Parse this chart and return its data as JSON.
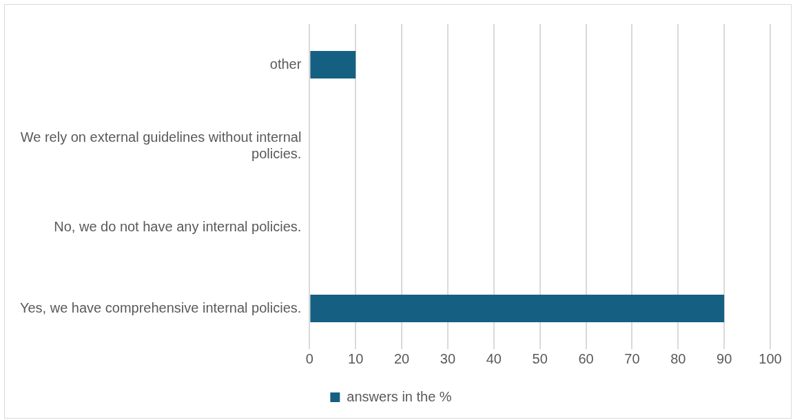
{
  "chart_data": {
    "type": "bar",
    "orientation": "horizontal",
    "categories": [
      "other",
      "We rely on external guidelines without internal policies.",
      "No, we do not have any internal policies.",
      "Yes, we have comprehensive internal policies."
    ],
    "series": [
      {
        "name": "answers in the %",
        "color": "#156082",
        "values": [
          10,
          0,
          0,
          90
        ]
      }
    ],
    "xlim": [
      0,
      100
    ],
    "xticks": [
      0,
      10,
      20,
      30,
      40,
      50,
      60,
      70,
      80,
      90,
      100
    ],
    "grid": "x",
    "legend": "bottom"
  }
}
